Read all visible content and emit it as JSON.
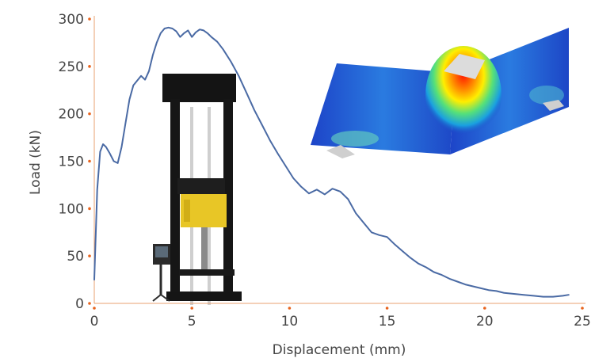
{
  "chart_data": {
    "type": "line",
    "xlabel": "Displacement (mm)",
    "ylabel": "Load (kN)",
    "xlim": [
      0,
      25
    ],
    "ylim": [
      0,
      300
    ],
    "x_ticks": [
      "0",
      "5",
      "10",
      "15",
      "20",
      "25"
    ],
    "y_ticks": [
      "0",
      "50",
      "100",
      "150",
      "200",
      "250",
      "300"
    ],
    "grid": false,
    "series": [
      {
        "x": [
          0,
          0.15,
          0.3,
          0.45,
          0.6,
          0.8,
          1.0,
          1.2,
          1.4,
          1.6,
          1.8,
          2.0,
          2.2,
          2.4,
          2.6,
          2.8,
          3.0,
          3.2,
          3.4,
          3.6,
          3.8,
          4.0,
          4.2,
          4.4,
          4.6,
          4.8,
          5.0,
          5.2,
          5.4,
          5.6,
          5.8,
          6.0,
          6.3,
          6.6,
          7.0,
          7.4,
          7.8,
          8.2,
          8.6,
          9.0,
          9.4,
          9.8,
          10.2,
          10.6,
          11.0,
          11.4,
          11.8,
          12.2,
          12.6,
          13.0,
          13.4,
          13.8,
          14.2,
          14.6,
          15.0,
          15.4,
          15.8,
          16.2,
          16.6,
          17.0,
          17.4,
          17.8,
          18.2,
          18.6,
          19.0,
          19.4,
          19.8,
          20.2,
          20.6,
          21.0,
          21.5,
          22.0,
          22.5,
          23.0,
          23.5,
          24.0,
          24.3
        ],
        "y": [
          25,
          120,
          160,
          168,
          165,
          158,
          150,
          148,
          165,
          190,
          215,
          230,
          235,
          240,
          236,
          245,
          262,
          275,
          285,
          290,
          291,
          290,
          287,
          281,
          285,
          288,
          281,
          286,
          289,
          288,
          285,
          281,
          276,
          268,
          255,
          240,
          222,
          204,
          188,
          172,
          158,
          145,
          132,
          123,
          116,
          120,
          115,
          121,
          118,
          110,
          95,
          85,
          75,
          72,
          70,
          62,
          55,
          48,
          42,
          38,
          33,
          30,
          26,
          23,
          20,
          18,
          16,
          14,
          13,
          11,
          10,
          9,
          8,
          7,
          7,
          8,
          9
        ]
      }
    ]
  }
}
